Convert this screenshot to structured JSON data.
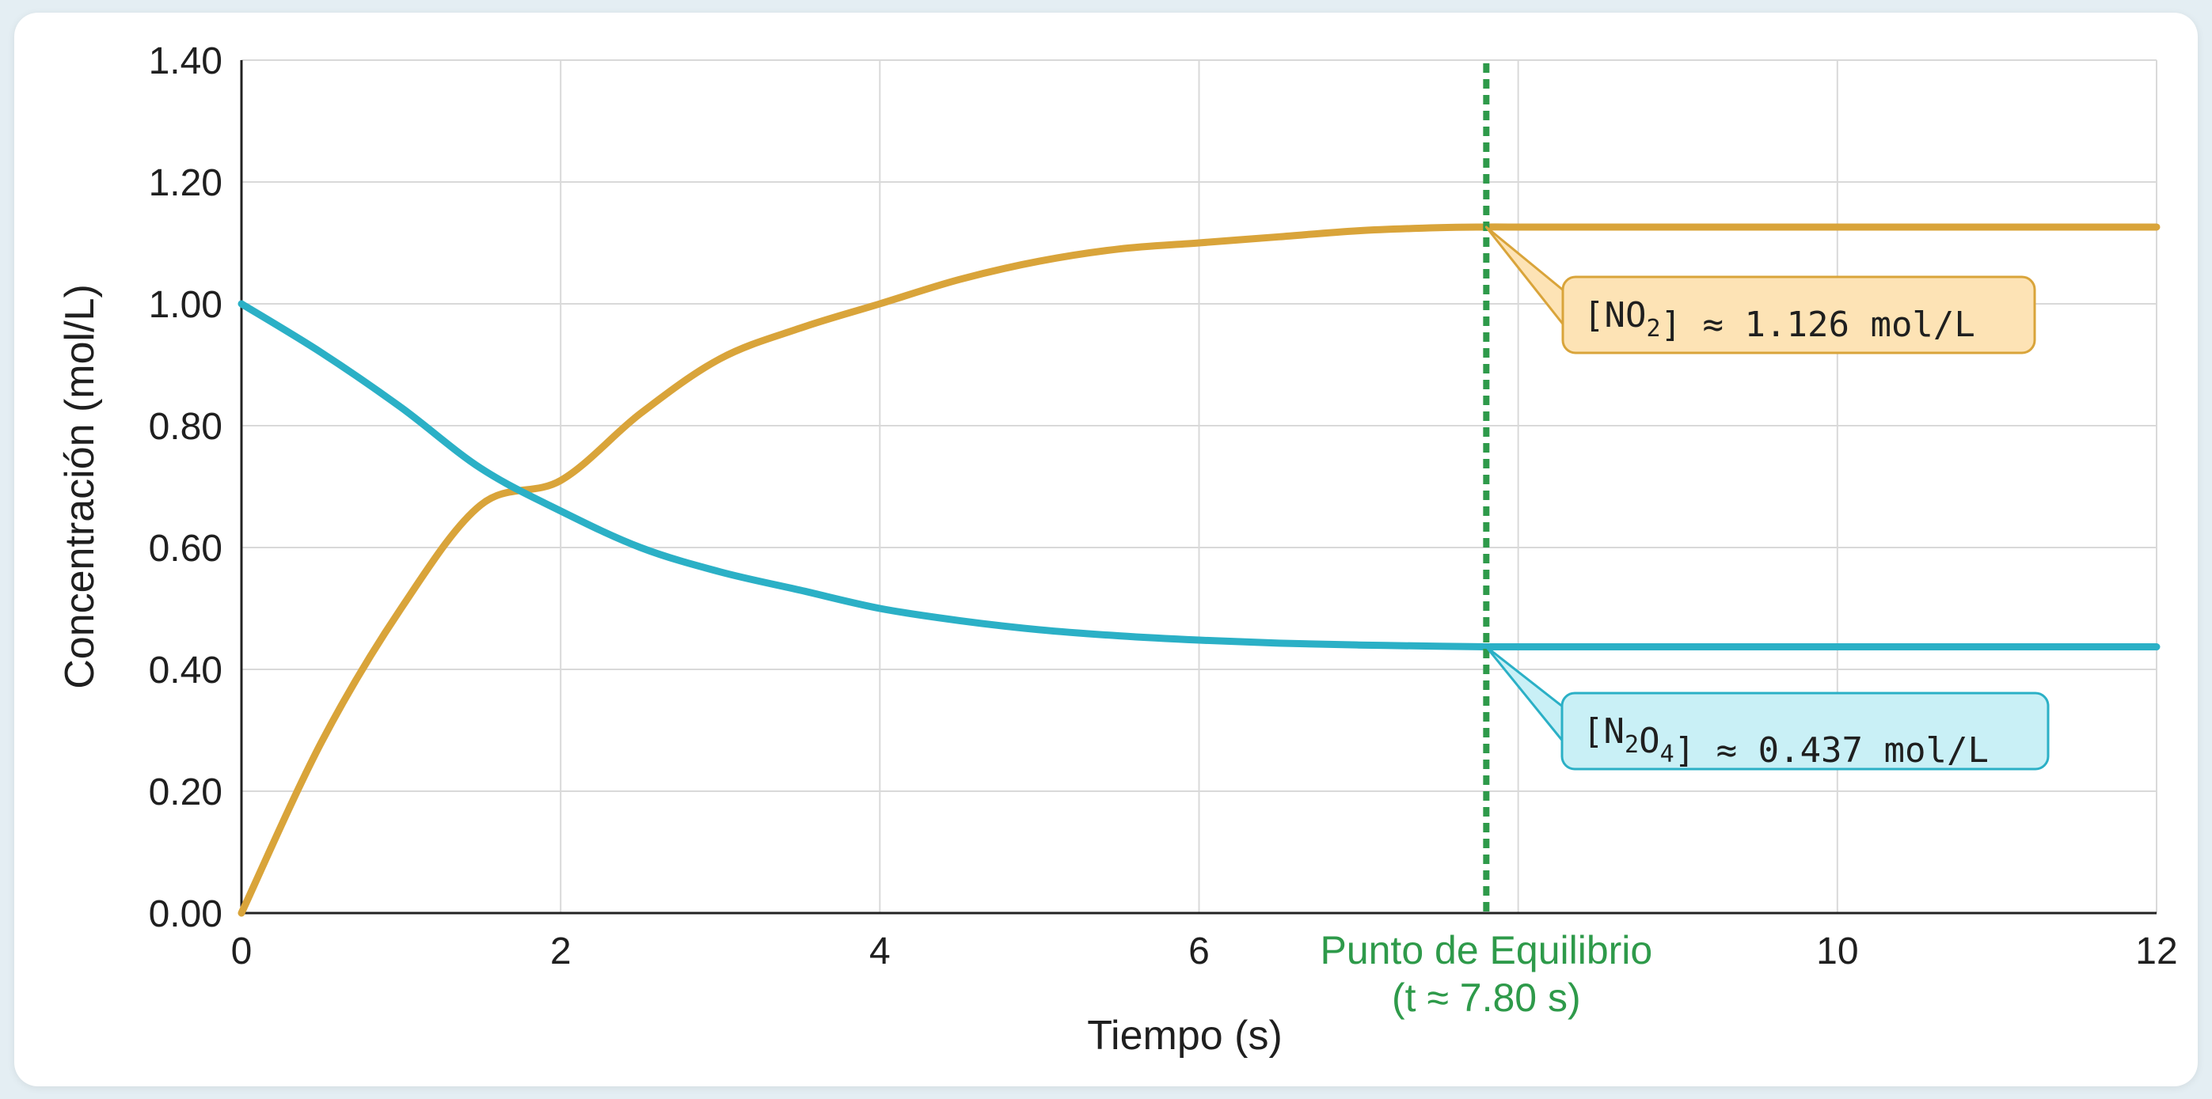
{
  "chart_data": {
    "type": "line",
    "xlabel": "Tiempo (s)",
    "ylabel": "Concentración (mol/L)",
    "xlim": [
      0,
      12
    ],
    "ylim": [
      0,
      1.4
    ],
    "x_ticks": [
      "0",
      "2",
      "4",
      "6",
      "10",
      "12"
    ],
    "x_tick_values": [
      0,
      2,
      4,
      6,
      10,
      12
    ],
    "y_ticks": [
      "0.00",
      "0.20",
      "0.40",
      "0.60",
      "0.80",
      "1.00",
      "1.20",
      "1.40"
    ],
    "y_tick_values": [
      0,
      0.2,
      0.4,
      0.6,
      0.8,
      1.0,
      1.2,
      1.4
    ],
    "grid": true,
    "series": [
      {
        "color": "#d9a43a",
        "x": [
          0,
          0.5,
          1,
          1.5,
          2,
          2.5,
          3,
          3.5,
          4,
          4.5,
          5,
          5.5,
          6,
          6.5,
          7,
          7.5,
          7.8,
          8,
          9,
          10,
          11,
          12
        ],
        "y": [
          0.0,
          0.28,
          0.5,
          0.67,
          0.71,
          0.82,
          0.91,
          0.96,
          1.0,
          1.04,
          1.07,
          1.09,
          1.1,
          1.11,
          1.12,
          1.125,
          1.126,
          1.126,
          1.126,
          1.126,
          1.126,
          1.126
        ]
      },
      {
        "color": "#2bb0c6",
        "x": [
          0,
          0.5,
          1,
          1.5,
          2,
          2.5,
          3,
          3.5,
          4,
          4.5,
          5,
          5.5,
          6,
          6.5,
          7,
          7.5,
          7.8,
          8,
          9,
          10,
          11,
          12
        ],
        "y": [
          1.0,
          0.92,
          0.83,
          0.73,
          0.66,
          0.6,
          0.56,
          0.53,
          0.5,
          0.48,
          0.465,
          0.455,
          0.448,
          0.443,
          0.44,
          0.438,
          0.437,
          0.437,
          0.437,
          0.437,
          0.437,
          0.437
        ]
      }
    ],
    "equilibrium": {
      "x": 7.8,
      "label_line1": "Punto de Equilibrio",
      "label_line2": "(t ≈ 7.80 s)",
      "color": "#2e9a4a"
    },
    "annotations": [
      {
        "series_index": 0,
        "species_main": "NO",
        "species_sub1": "2",
        "species_mid": "",
        "species_sub2": "",
        "text_suffix": " ≈ 1.126 mol/L",
        "fill": "#fde3b5",
        "stroke": "#d9a43a"
      },
      {
        "series_index": 1,
        "species_main": "N",
        "species_sub1": "2",
        "species_mid": "O",
        "species_sub2": "4",
        "text_suffix": " ≈ 0.437 mol/L",
        "fill": "#c9f0f6",
        "stroke": "#2bb0c6"
      }
    ]
  }
}
